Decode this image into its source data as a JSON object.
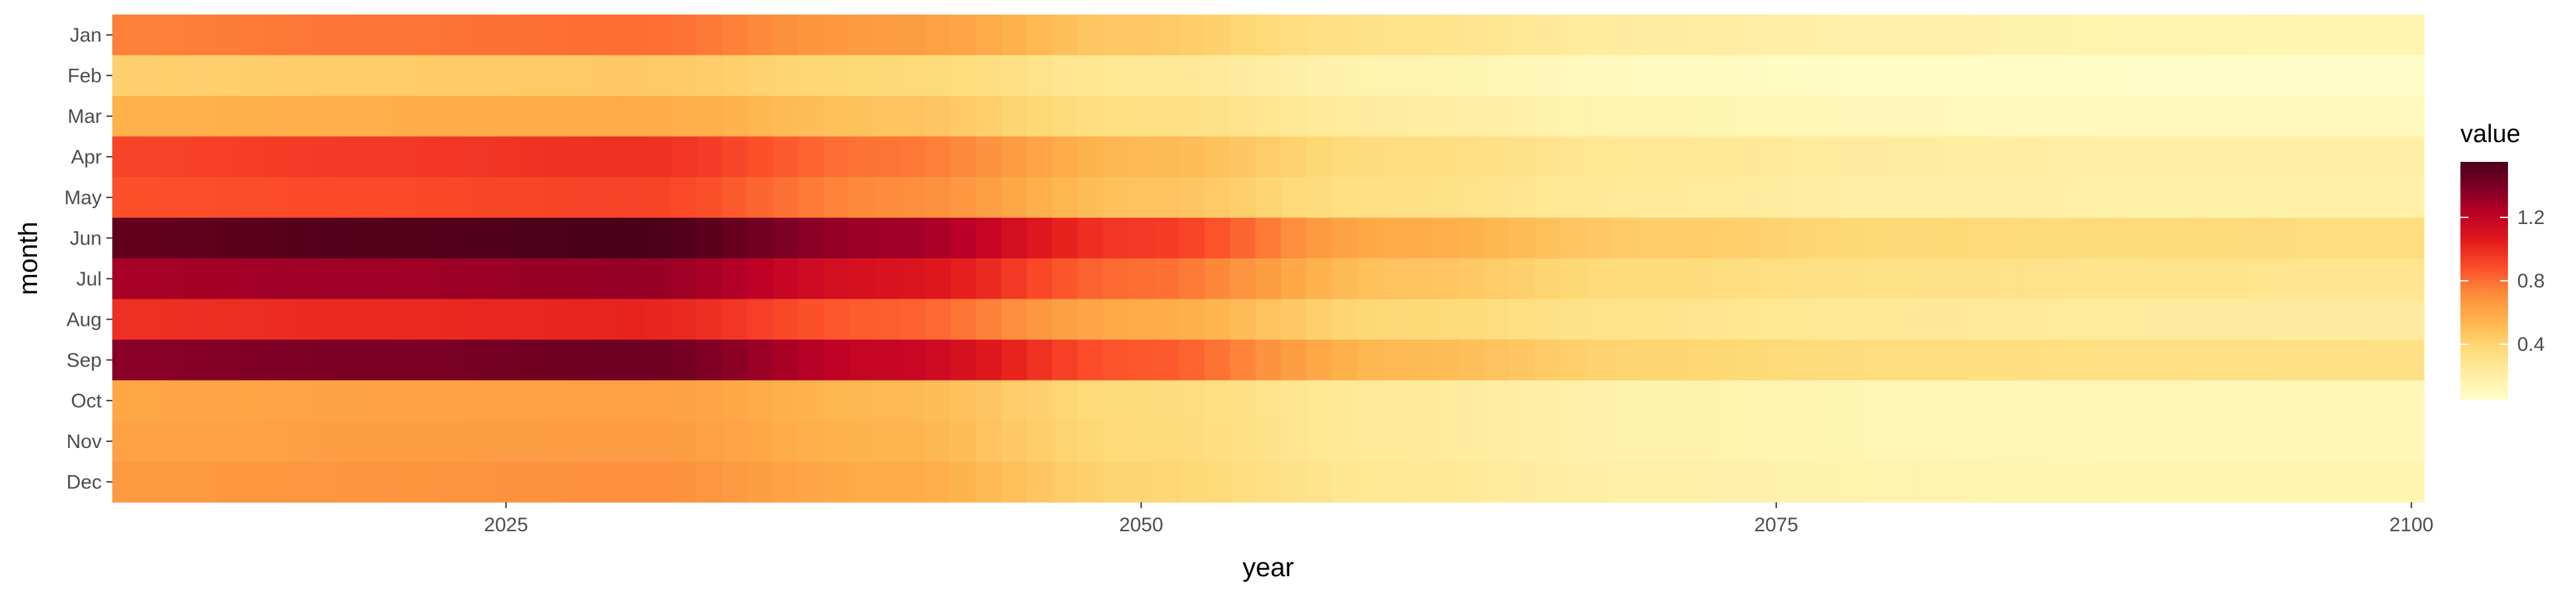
{
  "chart_data": {
    "type": "heatmap",
    "title": "",
    "xlabel": "year",
    "ylabel": "month",
    "x_range": [
      2010,
      2100
    ],
    "x_ticks": [
      2025,
      2050,
      2075,
      2100
    ],
    "months": [
      "Jan",
      "Feb",
      "Mar",
      "Apr",
      "May",
      "Jun",
      "Jul",
      "Aug",
      "Sep",
      "Oct",
      "Nov",
      "Dec"
    ],
    "value_range": [
      0.05,
      1.55
    ],
    "legend": {
      "title": "value",
      "ticks": [
        0.4,
        0.8,
        1.2
      ],
      "position": "right"
    },
    "color_scale": [
      "#ffffcc",
      "#ffeda0",
      "#fed976",
      "#feb24c",
      "#fd8d3c",
      "#fc4e2a",
      "#e31a1c",
      "#bd0026",
      "#800026",
      "#4a0019"
    ],
    "profiles": {
      "comment_years": [
        2010,
        2020,
        2030,
        2040,
        2050,
        2060,
        2070,
        2080,
        2090,
        2100
      ],
      "Jan": [
        0.75,
        0.78,
        0.8,
        0.65,
        0.45,
        0.3,
        0.22,
        0.18,
        0.16,
        0.15
      ],
      "Feb": [
        0.42,
        0.44,
        0.45,
        0.38,
        0.26,
        0.16,
        0.1,
        0.08,
        0.07,
        0.07
      ],
      "Mar": [
        0.55,
        0.57,
        0.58,
        0.48,
        0.33,
        0.22,
        0.15,
        0.12,
        0.11,
        0.11
      ],
      "Apr": [
        0.92,
        0.95,
        0.98,
        0.78,
        0.52,
        0.35,
        0.26,
        0.22,
        0.2,
        0.2
      ],
      "May": [
        0.88,
        0.9,
        0.92,
        0.72,
        0.48,
        0.32,
        0.24,
        0.2,
        0.19,
        0.19
      ],
      "Jun": [
        1.48,
        1.52,
        1.55,
        1.3,
        0.95,
        0.58,
        0.44,
        0.38,
        0.36,
        0.35
      ],
      "Jul": [
        1.28,
        1.3,
        1.32,
        1.1,
        0.8,
        0.48,
        0.36,
        0.31,
        0.29,
        0.28
      ],
      "Aug": [
        0.98,
        1.0,
        1.02,
        0.84,
        0.58,
        0.38,
        0.29,
        0.25,
        0.23,
        0.23
      ],
      "Sep": [
        1.36,
        1.4,
        1.44,
        1.18,
        0.86,
        0.52,
        0.4,
        0.35,
        0.33,
        0.32
      ],
      "Oct": [
        0.6,
        0.62,
        0.63,
        0.52,
        0.36,
        0.24,
        0.17,
        0.14,
        0.13,
        0.13
      ],
      "Nov": [
        0.62,
        0.64,
        0.65,
        0.54,
        0.37,
        0.24,
        0.17,
        0.14,
        0.13,
        0.13
      ],
      "Dec": [
        0.66,
        0.68,
        0.7,
        0.58,
        0.4,
        0.26,
        0.19,
        0.16,
        0.15,
        0.15
      ]
    }
  }
}
